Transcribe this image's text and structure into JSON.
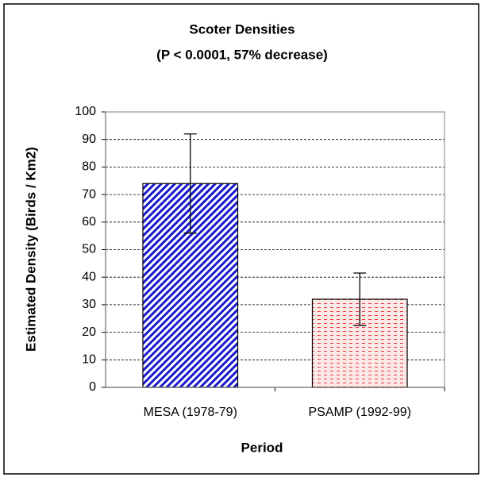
{
  "chart_data": {
    "type": "bar",
    "title": "Scoter Densities",
    "subtitle": "(P < 0.0001, 57% decrease)",
    "x_label": "Period",
    "y_label": "Estimated Density (Birds / Km2)",
    "categories": [
      "MESA (1978-79)",
      "PSAMP (1992-99)"
    ],
    "values": [
      74,
      32
    ],
    "errors": [
      18,
      9.5
    ],
    "colors": [
      "#1a1acc",
      "#e83a3a"
    ],
    "ylim": [
      0,
      100
    ],
    "yticks": [
      0,
      10,
      20,
      30,
      40,
      50,
      60,
      70,
      80,
      90,
      100
    ],
    "grid": true
  }
}
